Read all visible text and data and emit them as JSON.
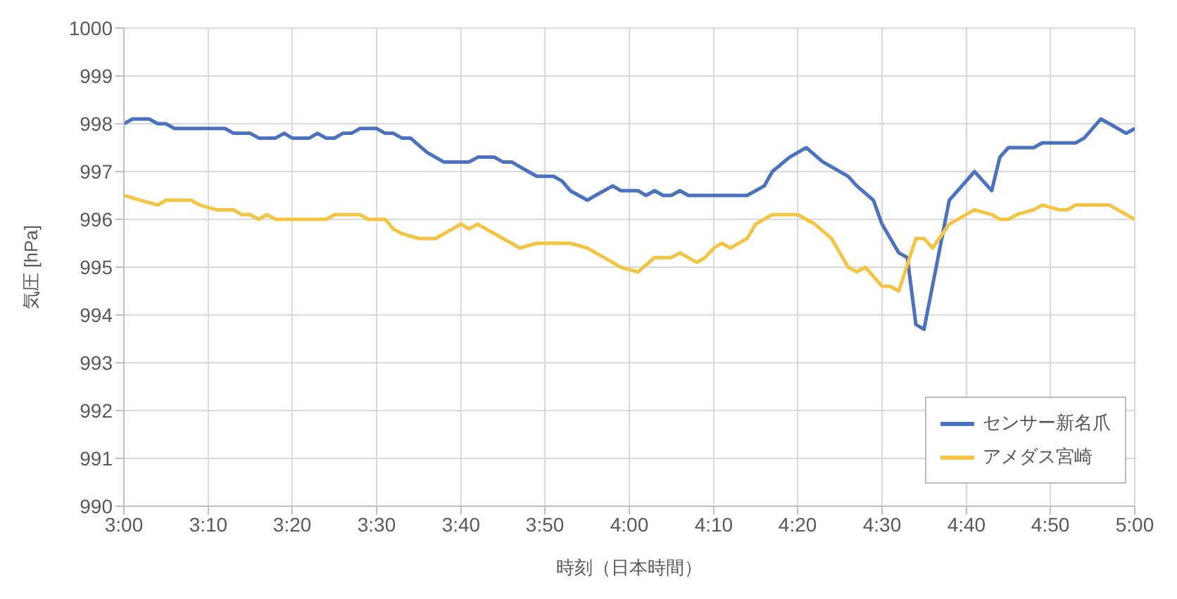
{
  "chart_data": {
    "type": "line",
    "xlabel": "時刻（日本時間）",
    "ylabel": "気圧 [hPa]",
    "xlim": [
      3,
      5
    ],
    "xticks": [
      {
        "value": 3,
        "label": "3:00"
      },
      {
        "value": 3.167,
        "label": "3:10"
      },
      {
        "value": 3.333,
        "label": "3:20"
      },
      {
        "value": 3.5,
        "label": "3:30"
      },
      {
        "value": 3.667,
        "label": "3:40"
      },
      {
        "value": 3.833,
        "label": "3:50"
      },
      {
        "value": 4,
        "label": "4:00"
      },
      {
        "value": 4.167,
        "label": "4:10"
      },
      {
        "value": 4.333,
        "label": "4:20"
      },
      {
        "value": 4.5,
        "label": "4:30"
      },
      {
        "value": 4.667,
        "label": "4:40"
      },
      {
        "value": 4.833,
        "label": "4:50"
      },
      {
        "value": 5,
        "label": "5:00"
      }
    ],
    "ylim": [
      990,
      1000
    ],
    "yticks": [
      990,
      991,
      992,
      993,
      994,
      995,
      996,
      997,
      998,
      999,
      1000
    ],
    "grid": true,
    "legend": "bottom right",
    "marker": "none",
    "line_style": "solid",
    "series": [
      {
        "name": "センサー新名爪",
        "color": "#4a72c0",
        "x": [
          3,
          3.017,
          3.05,
          3.067,
          3.083,
          3.1,
          3.2,
          3.217,
          3.25,
          3.267,
          3.3,
          3.317,
          3.333,
          3.367,
          3.383,
          3.4,
          3.417,
          3.433,
          3.45,
          3.467,
          3.5,
          3.517,
          3.533,
          3.55,
          3.567,
          3.6,
          3.633,
          3.683,
          3.7,
          3.733,
          3.75,
          3.767,
          3.8,
          3.817,
          3.85,
          3.867,
          3.883,
          3.9,
          3.917,
          3.933,
          3.95,
          3.967,
          3.983,
          4.017,
          4.033,
          4.05,
          4.067,
          4.083,
          4.1,
          4.117,
          4.233,
          4.25,
          4.267,
          4.283,
          4.317,
          4.35,
          4.383,
          4.4,
          4.433,
          4.45,
          4.483,
          4.5,
          4.533,
          4.55,
          4.567,
          4.583,
          4.633,
          4.683,
          4.717,
          4.733,
          4.75,
          4.8,
          4.817,
          4.883,
          4.9,
          4.933,
          4.95,
          4.983,
          5
        ],
        "values": [
          998.0,
          998.1,
          998.1,
          998.0,
          998.0,
          997.9,
          997.9,
          997.8,
          997.8,
          997.7,
          997.7,
          997.8,
          997.7,
          997.7,
          997.8,
          997.7,
          997.7,
          997.8,
          997.8,
          997.9,
          997.9,
          997.8,
          997.8,
          997.7,
          997.7,
          997.4,
          997.2,
          997.2,
          997.3,
          997.3,
          997.2,
          997.2,
          997.0,
          996.9,
          996.9,
          996.8,
          996.6,
          996.5,
          996.4,
          996.5,
          996.6,
          996.7,
          996.6,
          996.6,
          996.5,
          996.6,
          996.5,
          996.5,
          996.6,
          996.5,
          996.5,
          996.6,
          996.7,
          997.0,
          997.3,
          997.5,
          997.2,
          997.1,
          996.9,
          996.7,
          996.4,
          995.9,
          995.3,
          995.2,
          993.8,
          993.7,
          996.4,
          997.0,
          996.6,
          997.3,
          997.5,
          997.5,
          997.6,
          997.6,
          997.7,
          998.1,
          998.0,
          997.8,
          997.9
        ]
      },
      {
        "name": "アメダス宮崎",
        "color": "#f4c443",
        "x": [
          3,
          3.033,
          3.067,
          3.083,
          3.133,
          3.15,
          3.183,
          3.217,
          3.233,
          3.25,
          3.267,
          3.283,
          3.3,
          3.4,
          3.417,
          3.467,
          3.483,
          3.517,
          3.533,
          3.55,
          3.583,
          3.617,
          3.65,
          3.667,
          3.683,
          3.7,
          3.733,
          3.767,
          3.783,
          3.817,
          3.883,
          3.917,
          3.95,
          3.983,
          4.017,
          4.05,
          4.083,
          4.1,
          4.133,
          4.15,
          4.167,
          4.183,
          4.2,
          4.233,
          4.25,
          4.283,
          4.333,
          4.367,
          4.4,
          4.433,
          4.45,
          4.467,
          4.5,
          4.517,
          4.533,
          4.567,
          4.583,
          4.6,
          4.633,
          4.683,
          4.717,
          4.733,
          4.75,
          4.767,
          4.8,
          4.817,
          4.85,
          4.867,
          4.883,
          4.95,
          4.983,
          5
        ],
        "values": [
          996.5,
          996.4,
          996.3,
          996.4,
          996.4,
          996.3,
          996.2,
          996.2,
          996.1,
          996.1,
          996.0,
          996.1,
          996.0,
          996.0,
          996.1,
          996.1,
          996.0,
          996.0,
          995.8,
          995.7,
          995.6,
          995.6,
          995.8,
          995.9,
          995.8,
          995.9,
          995.7,
          995.5,
          995.4,
          995.5,
          995.5,
          995.4,
          995.2,
          995.0,
          994.9,
          995.2,
          995.2,
          995.3,
          995.1,
          995.2,
          995.4,
          995.5,
          995.4,
          995.6,
          995.9,
          996.1,
          996.1,
          995.9,
          995.6,
          995.0,
          994.9,
          995.0,
          994.6,
          994.6,
          994.5,
          995.6,
          995.6,
          995.4,
          995.9,
          996.2,
          996.1,
          996.0,
          996.0,
          996.1,
          996.2,
          996.3,
          996.2,
          996.2,
          996.3,
          996.3,
          996.1,
          996.0
        ]
      }
    ]
  }
}
